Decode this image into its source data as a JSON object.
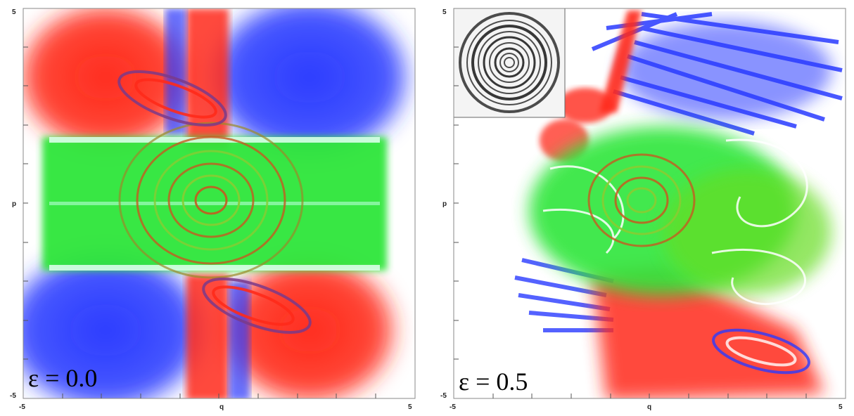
{
  "chart_data": [
    {
      "type": "scatter",
      "title": "",
      "xlabel": "q",
      "ylabel": "p",
      "xlim": [
        -5,
        5
      ],
      "ylim": [
        -5,
        5
      ],
      "x_ticks": [
        "-5",
        "q",
        "5"
      ],
      "y_ticks": [
        "5",
        "p",
        "-5"
      ],
      "annotation": "ε = 0.0",
      "point_colors": [
        "#ff2a1a",
        "#22ee22",
        "#2a3bff"
      ],
      "grid": false,
      "legend": "none"
    },
    {
      "type": "scatter",
      "title": "",
      "xlabel": "q",
      "ylabel": "p",
      "xlim": [
        -5,
        5
      ],
      "ylim": [
        -5,
        5
      ],
      "x_ticks": [
        "-5",
        "q",
        "5"
      ],
      "y_ticks": [
        "5",
        "p",
        "-5"
      ],
      "annotation": "ε = 0.5",
      "inset": "grayscale-spiral-inset",
      "point_colors": [
        "#ff2a1a",
        "#22ee22",
        "#2a3bff"
      ],
      "grid": false,
      "legend": "none"
    }
  ]
}
